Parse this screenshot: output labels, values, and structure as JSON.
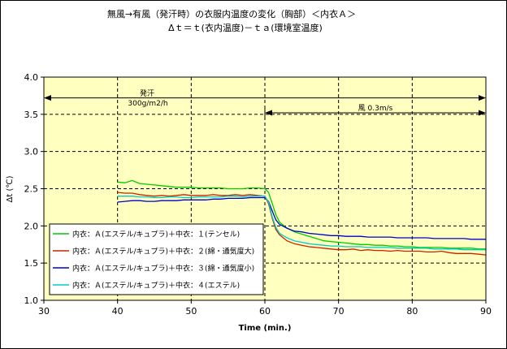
{
  "chart_data": {
    "type": "line",
    "title": "無風→有風（発汗時）の衣服内温度の変化（胸部）＜内衣Ａ＞",
    "subtitle": "Δｔ＝ｔ(衣内温度)－ｔａ(環境室温度)",
    "xlabel": "Time (min.)",
    "ylabel": "Δt (℃)",
    "xlim": [
      30,
      90
    ],
    "ylim": [
      1.0,
      4.0
    ],
    "x_ticks": [
      "30",
      "40",
      "50",
      "60",
      "70",
      "80",
      "90"
    ],
    "y_ticks": [
      "1.0",
      "1.5",
      "2.0",
      "2.5",
      "3.0",
      "3.5",
      "4.0"
    ],
    "grid": true,
    "plot_background": "#ffffc0",
    "legend_position": "bottom-left",
    "annotations": [
      {
        "text": "発汗",
        "line2": "300g/m2/h",
        "x_from": 30,
        "x_to": 90,
        "y": 3.72
      },
      {
        "text": "風 0.3m/s",
        "x_from": 60,
        "x_to": 90,
        "y": 3.52
      }
    ],
    "series": [
      {
        "name": "内衣：Ａ(エステル/キュプラ)＋中衣：１(テンセル)",
        "color": "#00cc00",
        "points": [
          [
            40,
            2.59
          ],
          [
            41,
            2.58
          ],
          [
            42,
            2.61
          ],
          [
            43,
            2.57
          ],
          [
            44,
            2.56
          ],
          [
            45,
            2.55
          ],
          [
            46,
            2.54
          ],
          [
            47,
            2.53
          ],
          [
            48,
            2.52
          ],
          [
            49,
            2.52
          ],
          [
            50,
            2.52
          ],
          [
            51,
            2.51
          ],
          [
            52,
            2.51
          ],
          [
            53,
            2.51
          ],
          [
            54,
            2.51
          ],
          [
            55,
            2.5
          ],
          [
            56,
            2.5
          ],
          [
            57,
            2.5
          ],
          [
            58,
            2.51
          ],
          [
            59,
            2.51
          ],
          [
            60,
            2.5
          ],
          [
            60.5,
            2.45
          ],
          [
            61,
            2.3
          ],
          [
            61.5,
            2.15
          ],
          [
            62,
            2.05
          ],
          [
            63,
            1.97
          ],
          [
            64,
            1.92
          ],
          [
            65,
            1.89
          ],
          [
            66,
            1.86
          ],
          [
            67,
            1.83
          ],
          [
            68,
            1.8
          ],
          [
            69,
            1.79
          ],
          [
            70,
            1.78
          ],
          [
            71,
            1.77
          ],
          [
            72,
            1.76
          ],
          [
            73,
            1.75
          ],
          [
            74,
            1.75
          ],
          [
            75,
            1.74
          ],
          [
            76,
            1.74
          ],
          [
            77,
            1.73
          ],
          [
            78,
            1.73
          ],
          [
            79,
            1.72
          ],
          [
            80,
            1.72
          ],
          [
            81,
            1.71
          ],
          [
            82,
            1.71
          ],
          [
            83,
            1.71
          ],
          [
            84,
            1.71
          ],
          [
            85,
            1.7
          ],
          [
            86,
            1.7
          ],
          [
            87,
            1.7
          ],
          [
            88,
            1.7
          ],
          [
            89,
            1.69
          ],
          [
            90,
            1.69
          ]
        ]
      },
      {
        "name": "内衣：Ａ(エステル/キュプラ)＋中衣：２(綿・通気度大)",
        "color": "#cc2200",
        "points": [
          [
            40,
            2.45
          ],
          [
            41,
            2.44
          ],
          [
            42,
            2.44
          ],
          [
            43,
            2.42
          ],
          [
            44,
            2.41
          ],
          [
            45,
            2.4
          ],
          [
            46,
            2.41
          ],
          [
            47,
            2.4
          ],
          [
            48,
            2.41
          ],
          [
            49,
            2.42
          ],
          [
            50,
            2.41
          ],
          [
            51,
            2.41
          ],
          [
            52,
            2.41
          ],
          [
            53,
            2.42
          ],
          [
            54,
            2.41
          ],
          [
            55,
            2.41
          ],
          [
            56,
            2.42
          ],
          [
            57,
            2.41
          ],
          [
            58,
            2.42
          ],
          [
            59,
            2.41
          ],
          [
            60,
            2.4
          ],
          [
            60.5,
            2.3
          ],
          [
            61,
            2.1
          ],
          [
            61.5,
            1.95
          ],
          [
            62,
            1.88
          ],
          [
            63,
            1.8
          ],
          [
            64,
            1.76
          ],
          [
            65,
            1.74
          ],
          [
            66,
            1.72
          ],
          [
            67,
            1.71
          ],
          [
            68,
            1.7
          ],
          [
            69,
            1.69
          ],
          [
            70,
            1.68
          ],
          [
            71,
            1.68
          ],
          [
            72,
            1.69
          ],
          [
            73,
            1.67
          ],
          [
            74,
            1.68
          ],
          [
            75,
            1.67
          ],
          [
            76,
            1.67
          ],
          [
            77,
            1.66
          ],
          [
            78,
            1.67
          ],
          [
            79,
            1.66
          ],
          [
            80,
            1.66
          ],
          [
            81,
            1.66
          ],
          [
            82,
            1.65
          ],
          [
            83,
            1.65
          ],
          [
            84,
            1.66
          ],
          [
            85,
            1.64
          ],
          [
            86,
            1.63
          ],
          [
            87,
            1.63
          ],
          [
            88,
            1.63
          ],
          [
            89,
            1.62
          ],
          [
            90,
            1.61
          ]
        ]
      },
      {
        "name": "内衣：Ａ(エステル/キュプラ)＋中衣：３(綿・通気度小)",
        "color": "#0000cc",
        "points": [
          [
            40,
            2.32
          ],
          [
            41,
            2.33
          ],
          [
            42,
            2.34
          ],
          [
            43,
            2.34
          ],
          [
            44,
            2.33
          ],
          [
            45,
            2.33
          ],
          [
            46,
            2.34
          ],
          [
            47,
            2.34
          ],
          [
            48,
            2.34
          ],
          [
            49,
            2.35
          ],
          [
            50,
            2.35
          ],
          [
            51,
            2.35
          ],
          [
            52,
            2.35
          ],
          [
            53,
            2.36
          ],
          [
            54,
            2.36
          ],
          [
            55,
            2.37
          ],
          [
            56,
            2.37
          ],
          [
            57,
            2.37
          ],
          [
            58,
            2.38
          ],
          [
            59,
            2.38
          ],
          [
            60,
            2.38
          ],
          [
            60.5,
            2.33
          ],
          [
            61,
            2.2
          ],
          [
            61.5,
            2.08
          ],
          [
            62,
            2.02
          ],
          [
            63,
            1.97
          ],
          [
            64,
            1.93
          ],
          [
            65,
            1.92
          ],
          [
            66,
            1.9
          ],
          [
            67,
            1.89
          ],
          [
            68,
            1.88
          ],
          [
            69,
            1.87
          ],
          [
            70,
            1.87
          ],
          [
            71,
            1.86
          ],
          [
            72,
            1.86
          ],
          [
            73,
            1.86
          ],
          [
            74,
            1.85
          ],
          [
            75,
            1.85
          ],
          [
            76,
            1.85
          ],
          [
            77,
            1.85
          ],
          [
            78,
            1.84
          ],
          [
            79,
            1.84
          ],
          [
            80,
            1.84
          ],
          [
            81,
            1.84
          ],
          [
            82,
            1.84
          ],
          [
            83,
            1.83
          ],
          [
            84,
            1.83
          ],
          [
            85,
            1.83
          ],
          [
            86,
            1.83
          ],
          [
            87,
            1.83
          ],
          [
            88,
            1.82
          ],
          [
            89,
            1.82
          ],
          [
            90,
            1.82
          ]
        ]
      },
      {
        "name": "内衣：Ａ(エステル/キュプラ)＋中衣：４(エステル)",
        "color": "#00cccc",
        "points": [
          [
            40,
            2.4
          ],
          [
            41,
            2.4
          ],
          [
            42,
            2.4
          ],
          [
            43,
            2.39
          ],
          [
            44,
            2.39
          ],
          [
            45,
            2.38
          ],
          [
            46,
            2.38
          ],
          [
            47,
            2.39
          ],
          [
            48,
            2.39
          ],
          [
            49,
            2.38
          ],
          [
            50,
            2.38
          ],
          [
            51,
            2.39
          ],
          [
            52,
            2.39
          ],
          [
            53,
            2.39
          ],
          [
            54,
            2.39
          ],
          [
            55,
            2.4
          ],
          [
            56,
            2.4
          ],
          [
            57,
            2.39
          ],
          [
            58,
            2.4
          ],
          [
            59,
            2.4
          ],
          [
            60,
            2.4
          ],
          [
            60.5,
            2.32
          ],
          [
            61,
            2.12
          ],
          [
            61.5,
            1.98
          ],
          [
            62,
            1.9
          ],
          [
            63,
            1.84
          ],
          [
            64,
            1.8
          ],
          [
            65,
            1.78
          ],
          [
            66,
            1.76
          ],
          [
            67,
            1.75
          ],
          [
            68,
            1.74
          ],
          [
            69,
            1.73
          ],
          [
            70,
            1.73
          ],
          [
            71,
            1.72
          ],
          [
            72,
            1.72
          ],
          [
            73,
            1.72
          ],
          [
            74,
            1.71
          ],
          [
            75,
            1.71
          ],
          [
            76,
            1.71
          ],
          [
            77,
            1.71
          ],
          [
            78,
            1.7
          ],
          [
            79,
            1.7
          ],
          [
            80,
            1.7
          ],
          [
            81,
            1.7
          ],
          [
            82,
            1.7
          ],
          [
            83,
            1.69
          ],
          [
            84,
            1.69
          ],
          [
            85,
            1.69
          ],
          [
            86,
            1.69
          ],
          [
            87,
            1.68
          ],
          [
            88,
            1.68
          ],
          [
            89,
            1.68
          ],
          [
            90,
            1.68
          ]
        ]
      }
    ]
  }
}
